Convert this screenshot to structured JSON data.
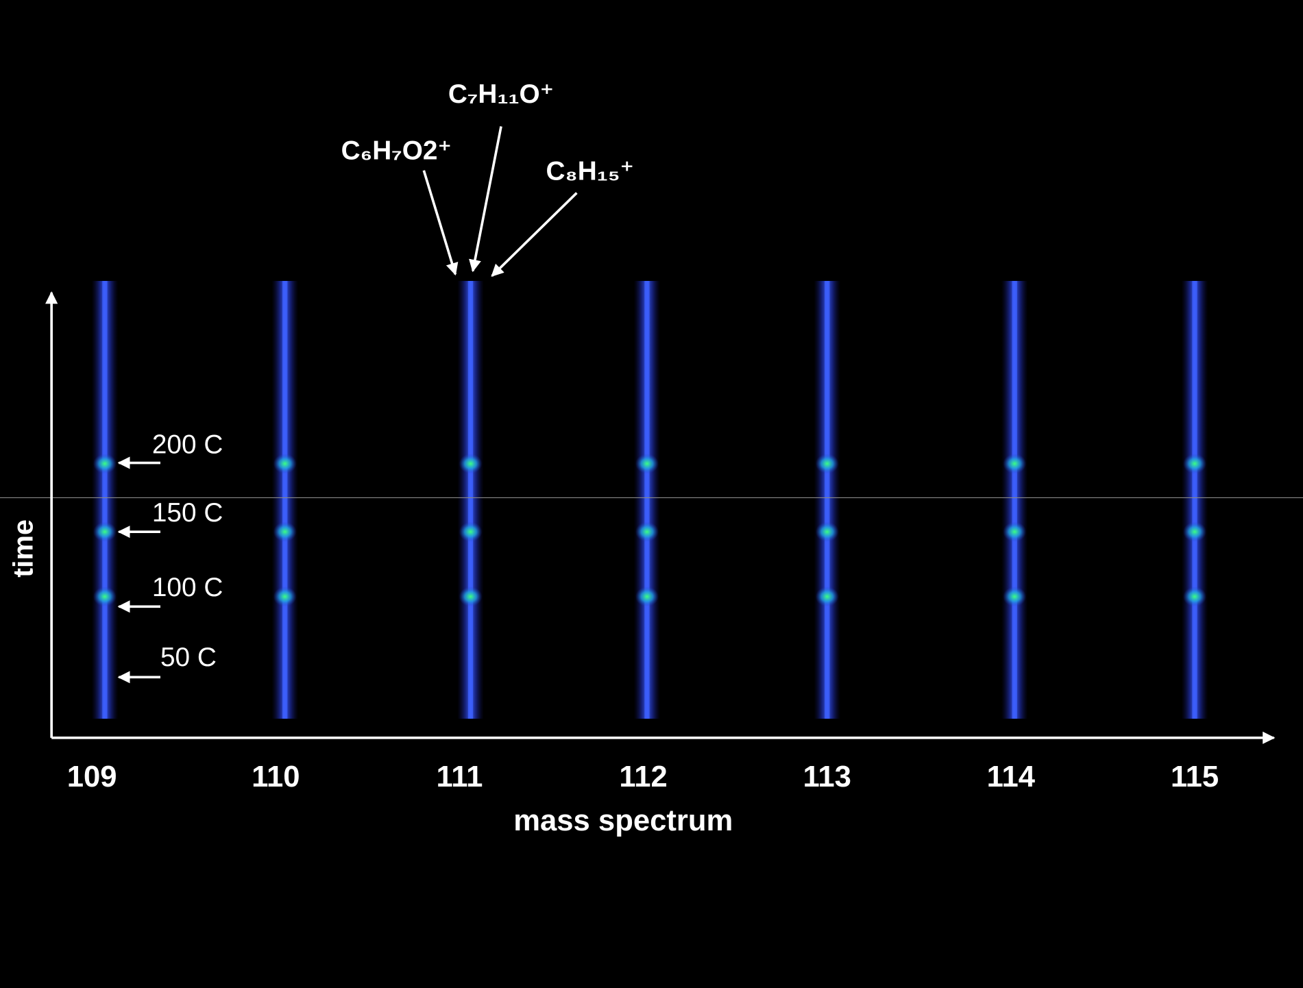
{
  "chart_data": {
    "type": "spectrogram",
    "x_label": "mass spectrum",
    "y_label": "time",
    "xlim": [
      108.78,
      115.44
    ],
    "xticks": [
      109,
      110,
      111,
      112,
      113,
      114,
      115
    ],
    "x": [
      109.07,
      110.05,
      111.06,
      112.02,
      113.0,
      114.02,
      115.0
    ],
    "color": "#2a3ccf",
    "peak_labels": [
      "C₆H₇O2⁺",
      "C₇H₁₁O⁺",
      "C₈H₁₅⁺"
    ],
    "temperature_labels": [
      "200 C",
      "150 C",
      "100 C",
      "50 C"
    ]
  }
}
